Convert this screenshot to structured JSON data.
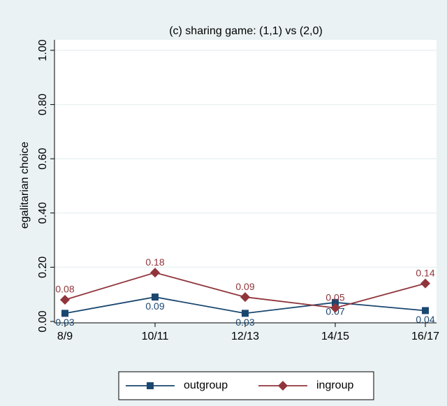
{
  "chart_data": {
    "type": "line",
    "title": "(c) sharing game: (1,1) vs (2,0)",
    "y_label": "egalitarian choice",
    "categories": [
      "8/9",
      "10/11",
      "12/13",
      "14/15",
      "16/17"
    ],
    "series": [
      {
        "name": "outgroup",
        "color": "#1a476f",
        "marker": "square",
        "label_position": "below",
        "values": [
          0.03,
          0.09,
          0.03,
          0.07,
          0.04
        ]
      },
      {
        "name": "ingroup",
        "color": "#90353b",
        "marker": "diamond",
        "label_position": "above",
        "values": [
          0.08,
          0.18,
          0.09,
          0.05,
          0.14
        ]
      }
    ],
    "ylim": [
      0,
      1
    ],
    "yticks": [
      {
        "value": 0,
        "label": "0.00"
      },
      {
        "value": 0.2,
        "label": "0.20"
      },
      {
        "value": 0.4,
        "label": "0.40"
      },
      {
        "value": 0.6,
        "label": "0.60"
      },
      {
        "value": 0.8,
        "label": "0.80"
      },
      {
        "value": 1,
        "label": "1.00"
      }
    ],
    "grid": true,
    "legend": "bottom"
  }
}
